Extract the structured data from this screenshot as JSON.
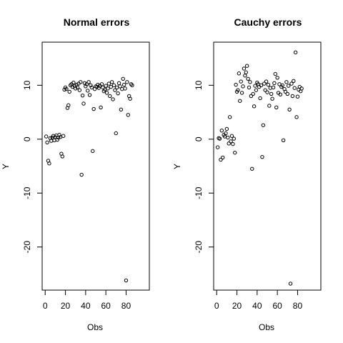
{
  "chart_data": [
    {
      "type": "scatter",
      "title": "Normal errors",
      "xlabel": "Obs",
      "ylabel": "Y",
      "xlim": [
        -3,
        103
      ],
      "ylim": [
        -28,
        18
      ],
      "xticks": [
        0,
        20,
        40,
        60,
        80
      ],
      "yticks": [
        -20,
        -10,
        0,
        10
      ],
      "grid": false,
      "points": [
        [
          1,
          0.5
        ],
        [
          2,
          -0.6
        ],
        [
          3,
          -4.0
        ],
        [
          4,
          -4.5
        ],
        [
          5,
          0.2
        ],
        [
          6,
          -0.3
        ],
        [
          7,
          0.3
        ],
        [
          8,
          0.6
        ],
        [
          9,
          -0.2
        ],
        [
          10,
          0.4
        ],
        [
          11,
          0.7
        ],
        [
          12,
          -0.1
        ],
        [
          13,
          0.3
        ],
        [
          14,
          0.8
        ],
        [
          15,
          0.4
        ],
        [
          16,
          -2.7
        ],
        [
          17,
          -3.2
        ],
        [
          18,
          0.6
        ],
        [
          19,
          9.2
        ],
        [
          20,
          9.6
        ],
        [
          21,
          9.3
        ],
        [
          22,
          5.8
        ],
        [
          23,
          6.3
        ],
        [
          24,
          8.8
        ],
        [
          25,
          10.0
        ],
        [
          26,
          10.2
        ],
        [
          27,
          9.7
        ],
        [
          28,
          10.5
        ],
        [
          29,
          9.9
        ],
        [
          30,
          9.4
        ],
        [
          31,
          10.1
        ],
        [
          32,
          9.6
        ],
        [
          33,
          10.3
        ],
        [
          34,
          9.1
        ],
        [
          35,
          10.6
        ],
        [
          36,
          -6.6
        ],
        [
          37,
          8.1
        ],
        [
          38,
          6.6
        ],
        [
          39,
          10.4
        ],
        [
          40,
          9.8
        ],
        [
          41,
          10.2
        ],
        [
          42,
          9.0
        ],
        [
          43,
          10.6
        ],
        [
          44,
          8.2
        ],
        [
          45,
          10.0
        ],
        [
          46,
          9.6
        ],
        [
          47,
          -2.2
        ],
        [
          48,
          5.6
        ],
        [
          49,
          9.3
        ],
        [
          50,
          9.8
        ],
        [
          51,
          9.7
        ],
        [
          52,
          10.1
        ],
        [
          53,
          9.5
        ],
        [
          54,
          9.9
        ],
        [
          55,
          5.9
        ],
        [
          56,
          10.2
        ],
        [
          57,
          9.6
        ],
        [
          58,
          8.9
        ],
        [
          59,
          9.2
        ],
        [
          60,
          9.9
        ],
        [
          61,
          8.6
        ],
        [
          62,
          9.4
        ],
        [
          63,
          10.3
        ],
        [
          64,
          8.0
        ],
        [
          65,
          9.7
        ],
        [
          66,
          10.6
        ],
        [
          67,
          7.4
        ],
        [
          68,
          10.0
        ],
        [
          69,
          9.1
        ],
        [
          70,
          1.1
        ],
        [
          71,
          9.6
        ],
        [
          72,
          8.5
        ],
        [
          73,
          10.4
        ],
        [
          74,
          9.8
        ],
        [
          75,
          5.5
        ],
        [
          76,
          9.3
        ],
        [
          77,
          11.2
        ],
        [
          78,
          10.1
        ],
        [
          79,
          9.4
        ],
        [
          80,
          -26.2
        ],
        [
          81,
          10.6
        ],
        [
          82,
          4.5
        ],
        [
          83,
          8.0
        ],
        [
          84,
          7.5
        ],
        [
          85,
          10.2
        ],
        [
          86,
          10.0
        ]
      ]
    },
    {
      "type": "scatter",
      "title": "Cauchy errors",
      "xlabel": "Obs",
      "ylabel": "Y",
      "xlim": [
        -3,
        103
      ],
      "ylim": [
        -28,
        18
      ],
      "xticks": [
        0,
        20,
        40,
        60,
        80
      ],
      "yticks": [
        -20,
        -10,
        0,
        10
      ],
      "grid": false,
      "points": [
        [
          1,
          -1.5
        ],
        [
          2,
          0.2
        ],
        [
          3,
          0.1
        ],
        [
          4,
          -3.8
        ],
        [
          5,
          1.6
        ],
        [
          6,
          -3.4
        ],
        [
          7,
          0.8
        ],
        [
          8,
          0.5
        ],
        [
          9,
          1.1
        ],
        [
          10,
          1.9
        ],
        [
          11,
          0.3
        ],
        [
          12,
          -0.8
        ],
        [
          13,
          4.1
        ],
        [
          14,
          -0.4
        ],
        [
          15,
          0.6
        ],
        [
          16,
          -0.9
        ],
        [
          17,
          0.1
        ],
        [
          18,
          -2.5
        ],
        [
          19,
          10.1
        ],
        [
          20,
          8.8
        ],
        [
          21,
          9.1
        ],
        [
          22,
          12.2
        ],
        [
          23,
          7.1
        ],
        [
          24,
          10.7
        ],
        [
          25,
          8.6
        ],
        [
          26,
          9.8
        ],
        [
          27,
          13.1
        ],
        [
          28,
          11.8
        ],
        [
          29,
          12.4
        ],
        [
          30,
          13.6
        ],
        [
          31,
          11.2
        ],
        [
          32,
          9.6
        ],
        [
          33,
          10.6
        ],
        [
          34,
          8.0
        ],
        [
          35,
          -5.5
        ],
        [
          36,
          8.4
        ],
        [
          37,
          6.1
        ],
        [
          38,
          9.9
        ],
        [
          39,
          9.1
        ],
        [
          40,
          10.5
        ],
        [
          41,
          10.2
        ],
        [
          42,
          9.7
        ],
        [
          43,
          7.6
        ],
        [
          44,
          10.0
        ],
        [
          45,
          -3.3
        ],
        [
          46,
          2.6
        ],
        [
          47,
          10.3
        ],
        [
          48,
          9.1
        ],
        [
          49,
          10.7
        ],
        [
          50,
          8.7
        ],
        [
          51,
          10.1
        ],
        [
          52,
          6.2
        ],
        [
          53,
          9.5
        ],
        [
          54,
          8.4
        ],
        [
          55,
          7.5
        ],
        [
          56,
          9.6
        ],
        [
          57,
          10.4
        ],
        [
          58,
          12.1
        ],
        [
          59,
          5.9
        ],
        [
          60,
          11.4
        ],
        [
          61,
          8.6
        ],
        [
          62,
          10.2
        ],
        [
          63,
          8.3
        ],
        [
          64,
          9.7
        ],
        [
          65,
          10.0
        ],
        [
          66,
          -0.2
        ],
        [
          67,
          9.3
        ],
        [
          68,
          8.8
        ],
        [
          69,
          10.6
        ],
        [
          70,
          8.4
        ],
        [
          71,
          9.9
        ],
        [
          72,
          5.5
        ],
        [
          73,
          -26.8
        ],
        [
          74,
          10.3
        ],
        [
          75,
          8.0
        ],
        [
          76,
          10.8
        ],
        [
          77,
          9.5
        ],
        [
          78,
          16.1
        ],
        [
          79,
          4.1
        ],
        [
          80,
          7.9
        ],
        [
          81,
          9.2
        ],
        [
          82,
          9.7
        ],
        [
          83,
          8.9
        ],
        [
          84,
          9.4
        ]
      ]
    }
  ]
}
